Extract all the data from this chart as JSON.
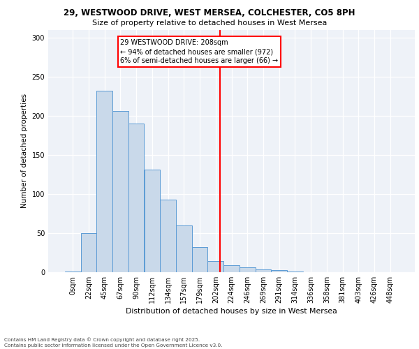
{
  "title_line1": "29, WESTWOOD DRIVE, WEST MERSEA, COLCHESTER, CO5 8PH",
  "title_line2": "Size of property relative to detached houses in West Mersea",
  "xlabel": "Distribution of detached houses by size in West Mersea",
  "ylabel": "Number of detached properties",
  "bar_labels": [
    "0sqm",
    "22sqm",
    "45sqm",
    "67sqm",
    "90sqm",
    "112sqm",
    "134sqm",
    "157sqm",
    "179sqm",
    "202sqm",
    "224sqm",
    "246sqm",
    "269sqm",
    "291sqm",
    "314sqm",
    "336sqm",
    "358sqm",
    "381sqm",
    "403sqm",
    "426sqm",
    "448sqm"
  ],
  "hist_values": [
    1,
    50,
    232,
    206,
    190,
    131,
    93,
    60,
    32,
    14,
    9,
    6,
    4,
    3,
    1,
    0,
    0,
    0,
    0,
    0,
    0
  ],
  "bar_color": "#c9d9ea",
  "bar_edge_color": "#5b9bd5",
  "vline_color": "red",
  "annotation_text": "29 WESTWOOD DRIVE: 208sqm\n← 94% of detached houses are smaller (972)\n6% of semi-detached houses are larger (66) →",
  "footer_line1": "Contains HM Land Registry data © Crown copyright and database right 2025.",
  "footer_line2": "Contains public sector information licensed under the Open Government Licence v3.0.",
  "ylim": [
    0,
    310
  ],
  "background_color": "#eef2f8"
}
